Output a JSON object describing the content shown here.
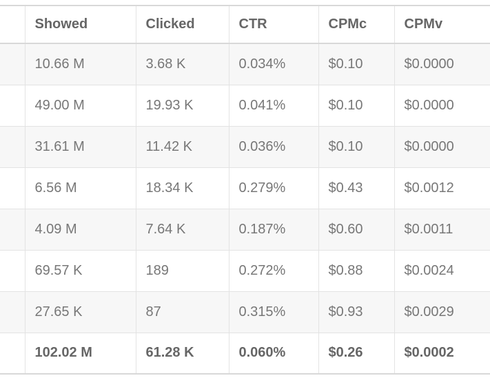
{
  "table": {
    "columns": [
      {
        "id": "row-label",
        "label": ""
      },
      {
        "id": "showed",
        "label": "Showed"
      },
      {
        "id": "clicked",
        "label": "Clicked"
      },
      {
        "id": "ctr",
        "label": "CTR"
      },
      {
        "id": "cpmc",
        "label": "CPMc"
      },
      {
        "id": "cpmv",
        "label": "CPMv"
      }
    ],
    "rows": [
      [
        "10.66 M",
        "3.68 K",
        "0.034%",
        "$0.10",
        "$0.0000"
      ],
      [
        "49.00 M",
        "19.93 K",
        "0.041%",
        "$0.10",
        "$0.0000"
      ],
      [
        "31.61 M",
        "11.42 K",
        "0.036%",
        "$0.10",
        "$0.0000"
      ],
      [
        "6.56 M",
        "18.34 K",
        "0.279%",
        "$0.43",
        "$0.0012"
      ],
      [
        "4.09 M",
        "7.64 K",
        "0.187%",
        "$0.60",
        "$0.0011"
      ],
      [
        "69.57 K",
        "189",
        "0.272%",
        "$0.88",
        "$0.0024"
      ],
      [
        "27.65 K",
        "87",
        "0.315%",
        "$0.93",
        "$0.0029"
      ]
    ],
    "totals_row": [
      "102.02 M",
      "61.28 K",
      "0.060%",
      "$0.26",
      "$0.0002"
    ]
  },
  "chart_data": {
    "type": "table",
    "columns": [
      "Showed",
      "Clicked",
      "CTR",
      "CPMc",
      "CPMv"
    ],
    "rows": [
      [
        "10.66 M",
        "3.68 K",
        "0.034%",
        "$0.10",
        "$0.0000"
      ],
      [
        "49.00 M",
        "19.93 K",
        "0.041%",
        "$0.10",
        "$0.0000"
      ],
      [
        "31.61 M",
        "11.42 K",
        "0.036%",
        "$0.10",
        "$0.0000"
      ],
      [
        "6.56 M",
        "18.34 K",
        "0.279%",
        "$0.43",
        "$0.0012"
      ],
      [
        "4.09 M",
        "7.64 K",
        "0.187%",
        "$0.60",
        "$0.0011"
      ],
      [
        "69.57 K",
        "189",
        "0.272%",
        "$0.88",
        "$0.0024"
      ],
      [
        "27.65 K",
        "87",
        "0.315%",
        "$0.93",
        "$0.0029"
      ],
      [
        "102.02 M",
        "61.28 K",
        "0.060%",
        "$0.26",
        "$0.0002"
      ]
    ]
  },
  "colors": {
    "stripe_row_bg": "#f7f7f7",
    "row_bg": "#ffffff",
    "border": "#e3e3e3",
    "strong_border": "#d8d8d8",
    "header_text": "#666666",
    "cell_text": "#777777"
  }
}
